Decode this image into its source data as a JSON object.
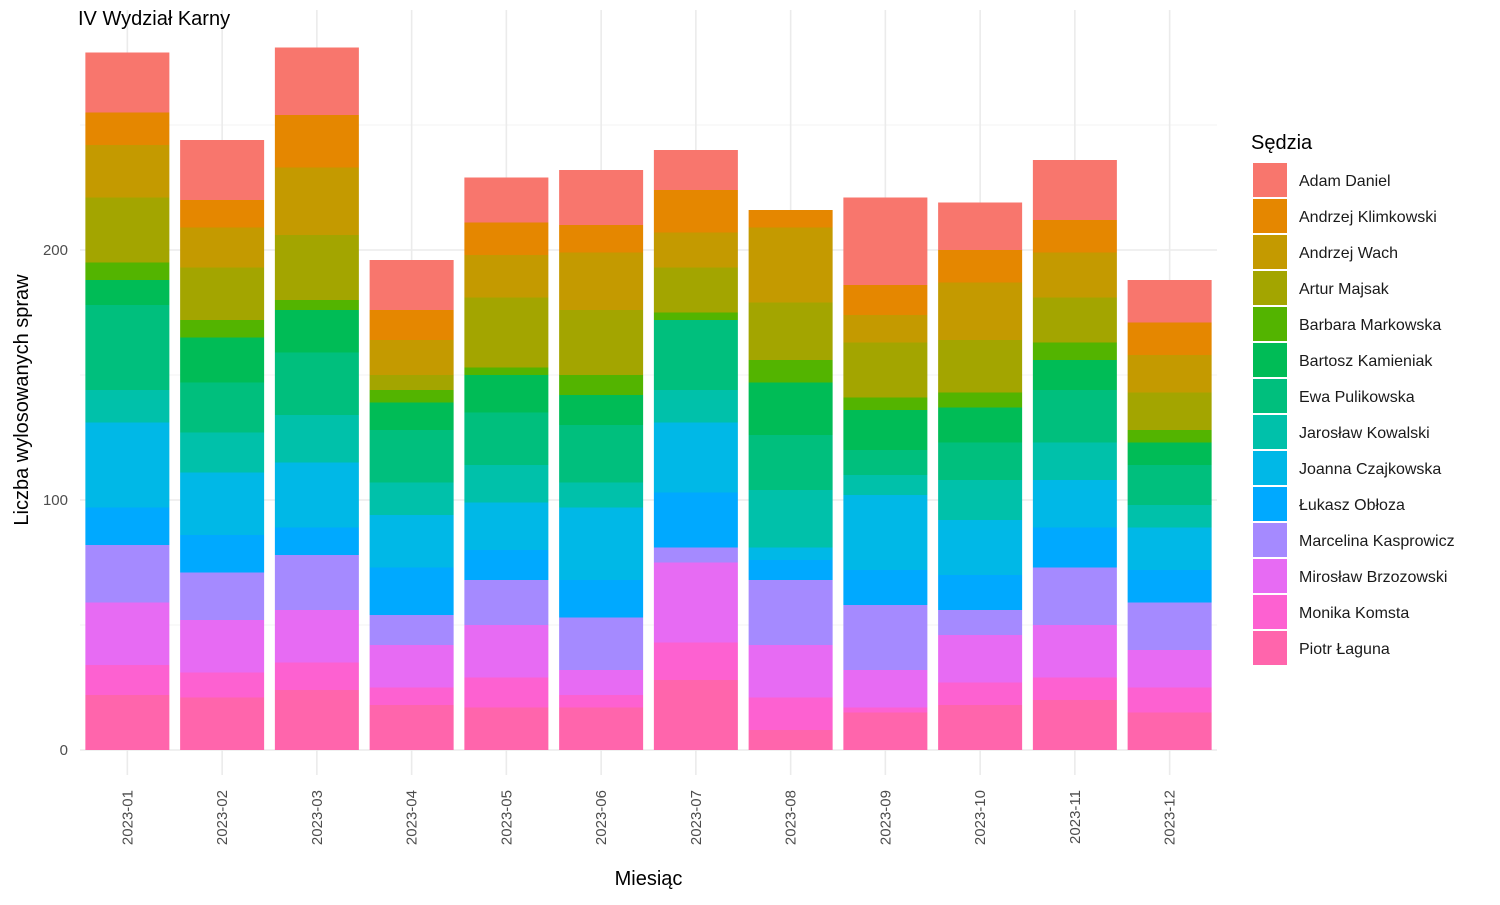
{
  "chart_data": {
    "type": "bar",
    "stacked": true,
    "title": "IV Wydział Karny",
    "xlabel": "Miesiąc",
    "ylabel": "Liczba wylosowanych spraw",
    "ylim": [
      0,
      285
    ],
    "yticks": [
      0,
      100,
      200
    ],
    "grid": true,
    "legend_title": "Sędzia",
    "legend_position": "right",
    "categories": [
      "2023-01",
      "2023-02",
      "2023-03",
      "2023-04",
      "2023-05",
      "2023-06",
      "2023-07",
      "2023-08",
      "2023-09",
      "2023-10",
      "2023-11",
      "2023-12"
    ],
    "series": [
      {
        "name": "Piotr Łaguna",
        "color": "#FF65AC",
        "values": [
          22,
          21,
          24,
          18,
          17,
          17,
          28,
          8,
          15,
          18,
          20,
          15
        ]
      },
      {
        "name": "Monika Komsta",
        "color": "#FD61D1",
        "values": [
          12,
          10,
          11,
          7,
          12,
          5,
          15,
          13,
          2,
          9,
          9,
          10
        ]
      },
      {
        "name": "Mirosław Brzozowski",
        "color": "#E76BF3",
        "values": [
          25,
          21,
          21,
          17,
          21,
          10,
          32,
          21,
          15,
          19,
          21,
          15
        ]
      },
      {
        "name": "Marcelina Kasprowicz",
        "color": "#A58AFF",
        "values": [
          23,
          19,
          22,
          12,
          18,
          21,
          6,
          26,
          26,
          10,
          23,
          19
        ]
      },
      {
        "name": "Łukasz Obłoza",
        "color": "#00A9FF",
        "values": [
          15,
          15,
          11,
          19,
          12,
          15,
          22,
          8,
          14,
          14,
          16,
          13
        ]
      },
      {
        "name": "Joanna Czajkowska",
        "color": "#00B8E7",
        "values": [
          34,
          25,
          26,
          21,
          19,
          29,
          28,
          5,
          30,
          22,
          19,
          17
        ]
      },
      {
        "name": "Jarosław Kowalski",
        "color": "#00C1AA",
        "values": [
          13,
          16,
          19,
          13,
          15,
          10,
          13,
          23,
          8,
          16,
          15,
          9
        ]
      },
      {
        "name": "Ewa Pulikowska",
        "color": "#00BF7D",
        "values": [
          34,
          20,
          25,
          21,
          21,
          23,
          28,
          22,
          10,
          15,
          21,
          16
        ]
      },
      {
        "name": "Bartosz Kamieniak",
        "color": "#00BC56",
        "values": [
          10,
          18,
          17,
          11,
          15,
          12,
          0,
          21,
          16,
          14,
          12,
          9
        ]
      },
      {
        "name": "Barbara Markowska",
        "color": "#53B400",
        "values": [
          7,
          7,
          4,
          5,
          3,
          8,
          3,
          9,
          5,
          6,
          7,
          5
        ]
      },
      {
        "name": "Artur Majsak",
        "color": "#A3A500",
        "values": [
          26,
          21,
          26,
          6,
          28,
          26,
          18,
          23,
          22,
          21,
          18,
          15
        ]
      },
      {
        "name": "Andrzej Wach",
        "color": "#C49A00",
        "values": [
          21,
          16,
          27,
          14,
          17,
          23,
          14,
          30,
          11,
          23,
          18,
          15
        ]
      },
      {
        "name": "Andrzej Klimkowski",
        "color": "#E58700",
        "values": [
          13,
          11,
          21,
          12,
          13,
          11,
          17,
          7,
          12,
          13,
          13,
          13
        ]
      },
      {
        "name": "Adam Daniel",
        "color": "#F8766D",
        "values": [
          24,
          24,
          27,
          20,
          18,
          22,
          16,
          0,
          35,
          19,
          24,
          17
        ]
      }
    ]
  }
}
